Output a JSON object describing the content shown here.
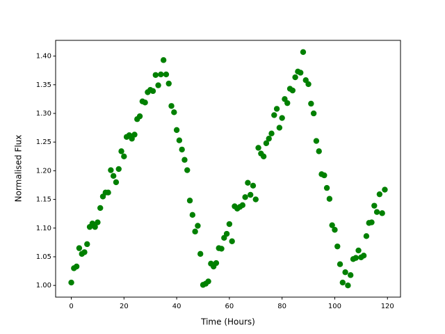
{
  "chart_data": {
    "type": "scatter",
    "x_label": "Time (Hours)",
    "y_label": "Normalised Flux",
    "color": "#008000",
    "x": [
      0,
      1,
      2,
      3,
      4,
      5,
      6,
      7,
      8,
      9,
      10,
      11,
      12,
      13,
      14,
      15,
      16,
      17,
      18,
      19,
      20,
      21,
      22,
      23,
      24,
      25,
      26,
      27,
      28,
      29,
      30,
      31,
      32,
      33,
      34,
      35,
      36,
      37,
      38,
      39,
      40,
      41,
      42,
      43,
      44,
      45,
      46,
      47,
      48,
      49,
      50,
      51,
      52,
      53,
      54,
      55,
      56,
      57,
      58,
      59,
      60,
      61,
      62,
      63,
      64,
      65,
      66,
      67,
      68,
      69,
      70,
      71,
      72,
      73,
      74,
      75,
      76,
      77,
      78,
      79,
      80,
      81,
      82,
      83,
      84,
      85,
      86,
      87,
      88,
      89,
      90,
      91,
      92,
      93,
      94,
      95,
      96,
      97,
      98,
      99,
      100,
      101,
      102,
      103,
      104,
      105,
      106,
      107,
      108,
      109,
      110,
      111,
      112,
      113,
      114,
      115,
      116,
      117,
      118,
      119
    ],
    "values": [
      1.005,
      1.03,
      1.033,
      1.065,
      1.055,
      1.058,
      1.072,
      1.102,
      1.108,
      1.102,
      1.11,
      1.135,
      1.155,
      1.162,
      1.162,
      1.201,
      1.191,
      1.18,
      1.203,
      1.234,
      1.225,
      1.259,
      1.262,
      1.256,
      1.263,
      1.29,
      1.295,
      1.321,
      1.319,
      1.337,
      1.341,
      1.339,
      1.367,
      1.349,
      1.368,
      1.393,
      1.368,
      1.352,
      1.313,
      1.302,
      1.271,
      1.253,
      1.237,
      1.219,
      1.201,
      1.148,
      1.123,
      1.094,
      1.104,
      1.055,
      1.001,
      1.003,
      1.007,
      1.038,
      1.033,
      1.039,
      1.065,
      1.064,
      1.083,
      1.09,
      1.107,
      1.077,
      1.138,
      1.134,
      1.137,
      1.14,
      1.154,
      1.179,
      1.158,
      1.174,
      1.15,
      1.24,
      1.23,
      1.225,
      1.248,
      1.256,
      1.265,
      1.297,
      1.308,
      1.275,
      1.292,
      1.325,
      1.318,
      1.343,
      1.34,
      1.363,
      1.373,
      1.371,
      1.407,
      1.358,
      1.351,
      1.317,
      1.3,
      1.252,
      1.234,
      1.194,
      1.192,
      1.17,
      1.151,
      1.105,
      1.097,
      1.068,
      1.037,
      1.005,
      1.023,
      1.0,
      1.018,
      1.046,
      1.048,
      1.061,
      1.049,
      1.052,
      1.086,
      1.109,
      1.11,
      1.139,
      1.128,
      1.159,
      1.126,
      1.167
    ],
    "xlim": [
      -5.95,
      124.95
    ],
    "xticks": [
      0,
      20,
      40,
      60,
      80,
      100,
      120
    ],
    "ylim": [
      0.9796,
      1.4274
    ],
    "yticks": [
      {
        "value": 1.0,
        "label": "1.00"
      },
      {
        "value": 1.05,
        "label": "1.05"
      },
      {
        "value": 1.1,
        "label": "1.10"
      },
      {
        "value": 1.15,
        "label": "1.15"
      },
      {
        "value": 1.2,
        "label": "1.20"
      },
      {
        "value": 1.25,
        "label": "1.25"
      },
      {
        "value": 1.3,
        "label": "1.30"
      },
      {
        "value": 1.35,
        "label": "1.35"
      },
      {
        "value": 1.4,
        "label": "1.40"
      }
    ],
    "grid": false
  }
}
